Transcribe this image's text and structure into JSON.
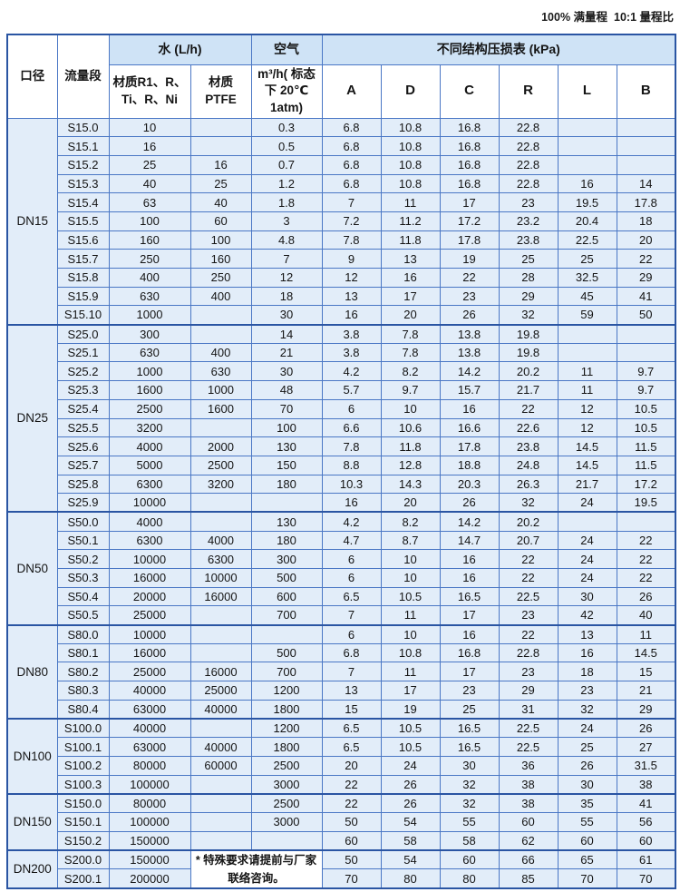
{
  "caption": "100% 满量程  10:1 量程比",
  "table": {
    "headers": {
      "diameter": "口径",
      "flow_segment": "流量段",
      "water_group": "水 (L/h)",
      "material_r1": "材质R1、R、Ti、R、Ni",
      "material_ptfe": "材质 PTFE",
      "air_group": "空气",
      "air_sub": "m³/h( 标态下 20℃ 1atm)",
      "pressure_group": "不同结构压损表 (kPa)",
      "pressure_cols": [
        "A",
        "D",
        "C",
        "R",
        "L",
        "B"
      ]
    },
    "groups": [
      {
        "diameter": "DN15",
        "rows": [
          [
            "S15.0",
            "10",
            "",
            "0.3",
            "6.8",
            "10.8",
            "16.8",
            "22.8",
            "",
            ""
          ],
          [
            "S15.1",
            "16",
            "",
            "0.5",
            "6.8",
            "10.8",
            "16.8",
            "22.8",
            "",
            ""
          ],
          [
            "S15.2",
            "25",
            "16",
            "0.7",
            "6.8",
            "10.8",
            "16.8",
            "22.8",
            "",
            ""
          ],
          [
            "S15.3",
            "40",
            "25",
            "1.2",
            "6.8",
            "10.8",
            "16.8",
            "22.8",
            "16",
            "14"
          ],
          [
            "S15.4",
            "63",
            "40",
            "1.8",
            "7",
            "11",
            "17",
            "23",
            "19.5",
            "17.8"
          ],
          [
            "S15.5",
            "100",
            "60",
            "3",
            "7.2",
            "11.2",
            "17.2",
            "23.2",
            "20.4",
            "18"
          ],
          [
            "S15.6",
            "160",
            "100",
            "4.8",
            "7.8",
            "11.8",
            "17.8",
            "23.8",
            "22.5",
            "20"
          ],
          [
            "S15.7",
            "250",
            "160",
            "7",
            "9",
            "13",
            "19",
            "25",
            "25",
            "22"
          ],
          [
            "S15.8",
            "400",
            "250",
            "12",
            "12",
            "16",
            "22",
            "28",
            "32.5",
            "29"
          ],
          [
            "S15.9",
            "630",
            "400",
            "18",
            "13",
            "17",
            "23",
            "29",
            "45",
            "41"
          ],
          [
            "S15.10",
            "1000",
            "",
            "30",
            "16",
            "20",
            "26",
            "32",
            "59",
            "50"
          ]
        ]
      },
      {
        "diameter": "DN25",
        "rows": [
          [
            "S25.0",
            "300",
            "",
            "14",
            "3.8",
            "7.8",
            "13.8",
            "19.8",
            "",
            ""
          ],
          [
            "S25.1",
            "630",
            "400",
            "21",
            "3.8",
            "7.8",
            "13.8",
            "19.8",
            "",
            ""
          ],
          [
            "S25.2",
            "1000",
            "630",
            "30",
            "4.2",
            "8.2",
            "14.2",
            "20.2",
            "11",
            "9.7"
          ],
          [
            "S25.3",
            "1600",
            "1000",
            "48",
            "5.7",
            "9.7",
            "15.7",
            "21.7",
            "11",
            "9.7"
          ],
          [
            "S25.4",
            "2500",
            "1600",
            "70",
            "6",
            "10",
            "16",
            "22",
            "12",
            "10.5"
          ],
          [
            "S25.5",
            "3200",
            "",
            "100",
            "6.6",
            "10.6",
            "16.6",
            "22.6",
            "12",
            "10.5"
          ],
          [
            "S25.6",
            "4000",
            "2000",
            "130",
            "7.8",
            "11.8",
            "17.8",
            "23.8",
            "14.5",
            "11.5"
          ],
          [
            "S25.7",
            "5000",
            "2500",
            "150",
            "8.8",
            "12.8",
            "18.8",
            "24.8",
            "14.5",
            "11.5"
          ],
          [
            "S25.8",
            "6300",
            "3200",
            "180",
            "10.3",
            "14.3",
            "20.3",
            "26.3",
            "21.7",
            "17.2"
          ],
          [
            "S25.9",
            "10000",
            "",
            "",
            "16",
            "20",
            "26",
            "32",
            "24",
            "19.5"
          ]
        ]
      },
      {
        "diameter": "DN50",
        "rows": [
          [
            "S50.0",
            "4000",
            "",
            "130",
            "4.2",
            "8.2",
            "14.2",
            "20.2",
            "",
            ""
          ],
          [
            "S50.1",
            "6300",
            "4000",
            "180",
            "4.7",
            "8.7",
            "14.7",
            "20.7",
            "24",
            "22"
          ],
          [
            "S50.2",
            "10000",
            "6300",
            "300",
            "6",
            "10",
            "16",
            "22",
            "24",
            "22"
          ],
          [
            "S50.3",
            "16000",
            "10000",
            "500",
            "6",
            "10",
            "16",
            "22",
            "24",
            "22"
          ],
          [
            "S50.4",
            "20000",
            "16000",
            "600",
            "6.5",
            "10.5",
            "16.5",
            "22.5",
            "30",
            "26"
          ],
          [
            "S50.5",
            "25000",
            "",
            "700",
            "7",
            "11",
            "17",
            "23",
            "42",
            "40"
          ]
        ]
      },
      {
        "diameter": "DN80",
        "rows": [
          [
            "S80.0",
            "10000",
            "",
            "",
            "6",
            "10",
            "16",
            "22",
            "13",
            "11"
          ],
          [
            "S80.1",
            "16000",
            "",
            "500",
            "6.8",
            "10.8",
            "16.8",
            "22.8",
            "16",
            "14.5"
          ],
          [
            "S80.2",
            "25000",
            "16000",
            "700",
            "7",
            "11",
            "17",
            "23",
            "18",
            "15"
          ],
          [
            "S80.3",
            "40000",
            "25000",
            "1200",
            "13",
            "17",
            "23",
            "29",
            "23",
            "21"
          ],
          [
            "S80.4",
            "63000",
            "40000",
            "1800",
            "15",
            "19",
            "25",
            "31",
            "32",
            "29"
          ]
        ]
      },
      {
        "diameter": "DN100",
        "rows": [
          [
            "S100.0",
            "40000",
            "",
            "1200",
            "6.5",
            "10.5",
            "16.5",
            "22.5",
            "24",
            "26"
          ],
          [
            "S100.1",
            "63000",
            "40000",
            "1800",
            "6.5",
            "10.5",
            "16.5",
            "22.5",
            "25",
            "27"
          ],
          [
            "S100.2",
            "80000",
            "60000",
            "2500",
            "20",
            "24",
            "30",
            "36",
            "26",
            "31.5"
          ],
          [
            "S100.3",
            "100000",
            "",
            "3000",
            "22",
            "26",
            "32",
            "38",
            "30",
            "38"
          ]
        ]
      },
      {
        "diameter": "DN150",
        "rows": [
          [
            "S150.0",
            "80000",
            "",
            "2500",
            "22",
            "26",
            "32",
            "38",
            "35",
            "41"
          ],
          [
            "S150.1",
            "100000",
            "",
            "3000",
            "50",
            "54",
            "55",
            "60",
            "55",
            "56"
          ],
          [
            "S150.2",
            "150000",
            "",
            "",
            "60",
            "58",
            "58",
            "62",
            "60",
            "60"
          ]
        ]
      },
      {
        "diameter": "DN200",
        "note": "* 特殊要求请提前与厂家联络咨询。",
        "rows": [
          [
            "S200.0",
            "150000",
            null,
            null,
            "50",
            "54",
            "60",
            "66",
            "65",
            "61"
          ],
          [
            "S200.1",
            "200000",
            null,
            null,
            "70",
            "80",
            "80",
            "85",
            "70",
            "70"
          ]
        ]
      }
    ]
  }
}
